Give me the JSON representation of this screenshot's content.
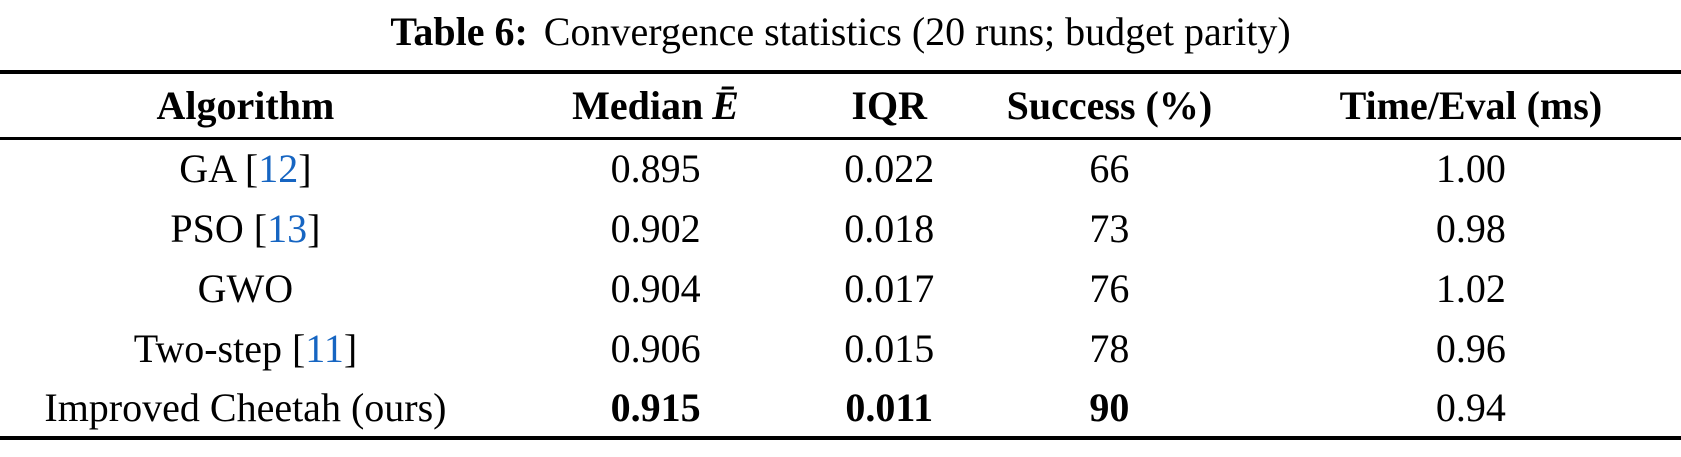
{
  "caption": {
    "label": "Table 6:",
    "text": "Convergence statistics (20 runs; budget parity)"
  },
  "table": {
    "columns": [
      {
        "label": "Algorithm"
      },
      {
        "label": "Median",
        "math": "Ē"
      },
      {
        "label": "IQR"
      },
      {
        "label": "Success (%)"
      },
      {
        "label": "Time/Eval (ms)"
      }
    ],
    "rows": [
      {
        "algorithm": "GA",
        "citation": "12",
        "median": "0.895",
        "iqr": "0.022",
        "success": "66",
        "time_eval": "1.00",
        "bold_cells": []
      },
      {
        "algorithm": "PSO",
        "citation": "13",
        "median": "0.902",
        "iqr": "0.018",
        "success": "73",
        "time_eval": "0.98",
        "bold_cells": []
      },
      {
        "algorithm": "GWO",
        "citation": null,
        "median": "0.904",
        "iqr": "0.017",
        "success": "76",
        "time_eval": "1.02",
        "bold_cells": []
      },
      {
        "algorithm": "Two-step",
        "citation": "11",
        "median": "0.906",
        "iqr": "0.015",
        "success": "78",
        "time_eval": "0.96",
        "bold_cells": []
      },
      {
        "algorithm": "Improved Cheetah (ours)",
        "citation": null,
        "median": "0.915",
        "iqr": "0.011",
        "success": "90",
        "time_eval": "0.94",
        "bold_cells": [
          "median",
          "iqr",
          "success"
        ]
      }
    ]
  },
  "colors": {
    "text": "#000000",
    "rule": "#000000",
    "citation_link": "#1665C2"
  }
}
